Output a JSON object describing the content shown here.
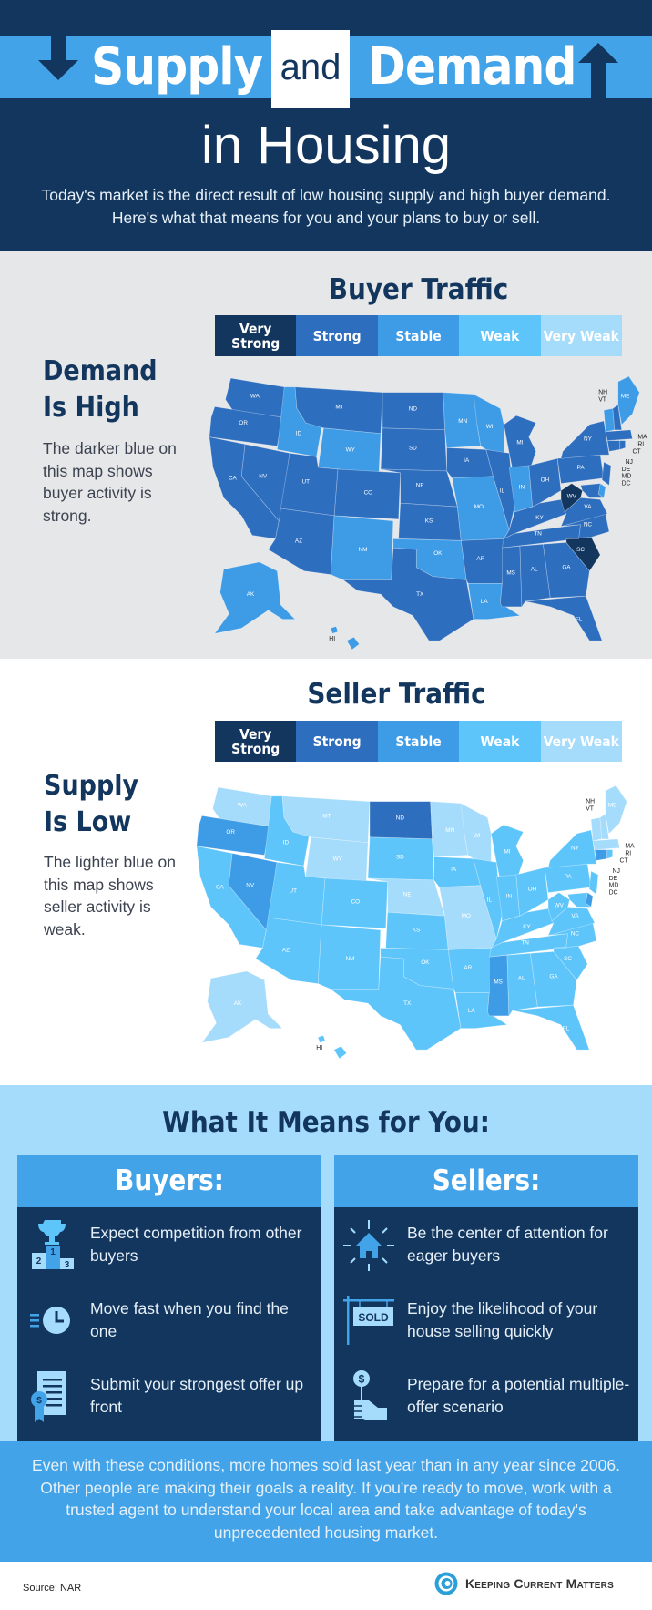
{
  "header": {
    "title_left": "Supply",
    "title_mid": "and",
    "title_right": "Demand",
    "subtitle": "in Housing",
    "intro": "Today's market is the direct result of low housing supply and high buyer demand. Here's what that means for you and your plans to buy or sell.",
    "icons": [
      "arrow-down-icon",
      "arrow-up-icon"
    ]
  },
  "colors": {
    "navy": "#13365e",
    "band_blue": "#43a3e8",
    "very_strong": "#13365e",
    "strong": "#2e6ebf",
    "stable": "#3e9be6",
    "weak": "#5ec5fb",
    "very_weak": "#a6dcfb",
    "buyer_bg": "#e6e7e9",
    "means_bg": "#a6dcfb"
  },
  "legend": [
    "Very Strong",
    "Strong",
    "Stable",
    "Weak",
    "Very Weak"
  ],
  "buyer": {
    "title": "Buyer Traffic",
    "side_heading_1": "Demand",
    "side_heading_2": "Is High",
    "side_text": "The darker blue on this map shows buyer activity is strong."
  },
  "seller": {
    "title": "Seller Traffic",
    "side_heading_1": "Supply",
    "side_heading_2": "Is Low",
    "side_text": "The lighter blue on this map shows seller activity is weak."
  },
  "map_callouts": [
    "NH",
    "VT",
    "MA",
    "RI",
    "CT",
    "NJ",
    "DE",
    "MD",
    "DC",
    "HI"
  ],
  "chart_data": [
    {
      "type": "choropleth",
      "title": "Buyer Traffic",
      "legend": [
        "Very Strong",
        "Strong",
        "Stable",
        "Weak",
        "Very Weak"
      ],
      "default_category": "Strong",
      "values": {
        "Very Strong": [
          "WV",
          "SC"
        ],
        "Stable": [
          "ID",
          "WY",
          "NM",
          "MN",
          "WI",
          "MO",
          "IN",
          "OK",
          "LA",
          "AK",
          "HI",
          "VT",
          "ME",
          "DE"
        ],
        "Strong": [
          "WA",
          "OR",
          "CA",
          "NV",
          "UT",
          "AZ",
          "MT",
          "CO",
          "ND",
          "SD",
          "NE",
          "KS",
          "TX",
          "IA",
          "AR",
          "IL",
          "MI",
          "MS",
          "AL",
          "TN",
          "KY",
          "OH",
          "GA",
          "FL",
          "NC",
          "VA",
          "PA",
          "NY",
          "NJ",
          "MD",
          "CT",
          "RI",
          "MA",
          "NH",
          "DC"
        ]
      }
    },
    {
      "type": "choropleth",
      "title": "Seller Traffic",
      "legend": [
        "Very Strong",
        "Strong",
        "Stable",
        "Weak",
        "Very Weak"
      ],
      "default_category": "Weak",
      "values": {
        "Strong": [
          "ND"
        ],
        "Stable": [
          "OR",
          "NV",
          "MS",
          "DE",
          "CT"
        ],
        "Very Weak": [
          "WA",
          "MT",
          "WY",
          "MN",
          "WI",
          "NE",
          "MO",
          "AK",
          "ME",
          "NH",
          "VT",
          "MA"
        ],
        "Weak": [
          "CA",
          "ID",
          "UT",
          "AZ",
          "CO",
          "NM",
          "SD",
          "KS",
          "OK",
          "TX",
          "IA",
          "AR",
          "LA",
          "IL",
          "MI",
          "IN",
          "OH",
          "KY",
          "TN",
          "AL",
          "GA",
          "FL",
          "SC",
          "NC",
          "VA",
          "WV",
          "PA",
          "NY",
          "NJ",
          "MD",
          "RI",
          "HI",
          "DC"
        ]
      }
    }
  ],
  "means": {
    "title": "What It Means for You:",
    "buyers": {
      "heading": "Buyers:",
      "items": [
        {
          "icon": "podium-trophy-icon",
          "text": "Expect competition from other buyers"
        },
        {
          "icon": "fast-clock-icon",
          "text": "Move fast when you find the one"
        },
        {
          "icon": "offer-document-icon",
          "text": "Submit your strongest offer up front"
        }
      ]
    },
    "sellers": {
      "heading": "Sellers:",
      "items": [
        {
          "icon": "spotlight-house-icon",
          "text": "Be the center of attention for eager buyers"
        },
        {
          "icon": "sold-sign-icon",
          "text": "Enjoy the likelihood of your house selling quickly",
          "sign_label": "SOLD"
        },
        {
          "icon": "hand-dollar-icon",
          "text": "Prepare for a potential multiple-offer scenario"
        }
      ]
    }
  },
  "closing": "Even with these conditions, more homes sold last year than in any year since 2006. Other people are making their goals a reality. If you're ready to move, work with a trusted agent to understand your local area and take advantage of today's unprecedented housing market.",
  "footer": {
    "source": "Source: NAR",
    "brand": "Keeping Current Matters"
  }
}
